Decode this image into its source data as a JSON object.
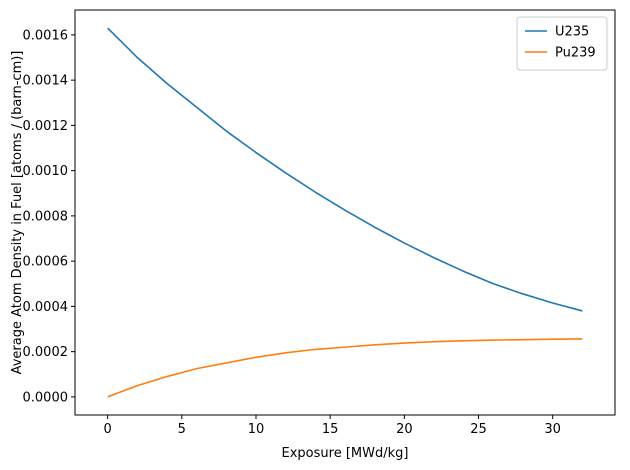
{
  "chart_data": {
    "type": "line",
    "title": "",
    "xlabel": "Exposure [MWd/kg]",
    "ylabel": "Average Atom Density in Fuel [atoms / (barn-cm)]",
    "xlim": [
      -2.2,
      34.2
    ],
    "ylim": [
      -8e-05,
      0.00171
    ],
    "x_ticks": [
      0,
      5,
      10,
      15,
      20,
      25,
      30
    ],
    "x_tick_labels": [
      "0",
      "5",
      "10",
      "15",
      "20",
      "25",
      "30"
    ],
    "y_ticks": [
      0,
      0.0002,
      0.0004,
      0.0006,
      0.0008,
      0.001,
      0.0012,
      0.0014,
      0.0016
    ],
    "y_tick_labels": [
      "0.0000",
      "0.0002",
      "0.0004",
      "0.0006",
      "0.0008",
      "0.0010",
      "0.0012",
      "0.0014",
      "0.0016"
    ],
    "grid": false,
    "legend_position": "top-right",
    "x": [
      0,
      2,
      4,
      6,
      8,
      10,
      12,
      14,
      16,
      18,
      20,
      22,
      24,
      26,
      28,
      30,
      32
    ],
    "series": [
      {
        "name": "U235",
        "color": "#1f77b4",
        "values": [
          0.00163,
          0.0015,
          0.001385,
          0.00128,
          0.001175,
          0.00108,
          0.00099,
          0.000905,
          0.000825,
          0.00075,
          0.00068,
          0.000615,
          0.000555,
          0.0005,
          0.000455,
          0.000415,
          0.00038
        ]
      },
      {
        "name": "Pu239",
        "color": "#ff7f0e",
        "values": [
          0.0,
          5e-05,
          9e-05,
          0.000125,
          0.00015,
          0.000175,
          0.000195,
          0.00021,
          0.00022,
          0.00023,
          0.000238,
          0.000244,
          0.000248,
          0.000251,
          0.000253,
          0.000255,
          0.000256
        ]
      }
    ]
  }
}
